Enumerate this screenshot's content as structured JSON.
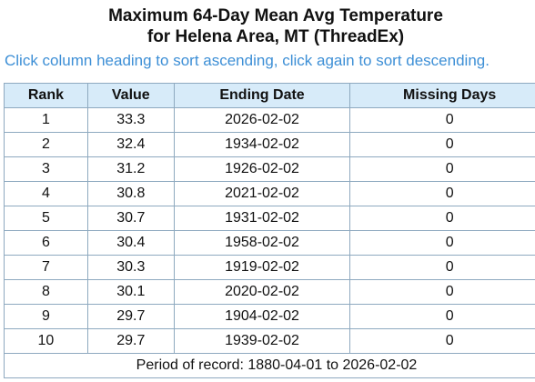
{
  "header": {
    "title_line1": "Maximum 64-Day Mean Avg Temperature",
    "title_line2": "for Helena Area, MT (ThreadEx)",
    "hint": "Click column heading to sort ascending, click again to sort descending."
  },
  "colors": {
    "hint": "#3d8fd6",
    "header_bg": "#d7ebf9",
    "border": "#8ea9bf"
  },
  "table": {
    "columns": [
      "Rank",
      "Value",
      "Ending Date",
      "Missing Days"
    ],
    "rows": [
      [
        "1",
        "33.3",
        "2026-02-02",
        "0"
      ],
      [
        "2",
        "32.4",
        "1934-02-02",
        "0"
      ],
      [
        "3",
        "31.2",
        "1926-02-02",
        "0"
      ],
      [
        "4",
        "30.8",
        "2021-02-02",
        "0"
      ],
      [
        "5",
        "30.7",
        "1931-02-02",
        "0"
      ],
      [
        "6",
        "30.4",
        "1958-02-02",
        "0"
      ],
      [
        "7",
        "30.3",
        "1919-02-02",
        "0"
      ],
      [
        "8",
        "30.1",
        "2020-02-02",
        "0"
      ],
      [
        "9",
        "29.7",
        "1904-02-02",
        "0"
      ],
      [
        "10",
        "29.7",
        "1939-02-02",
        "0"
      ]
    ],
    "footer": "Period of record: 1880-04-01 to 2026-02-02"
  }
}
